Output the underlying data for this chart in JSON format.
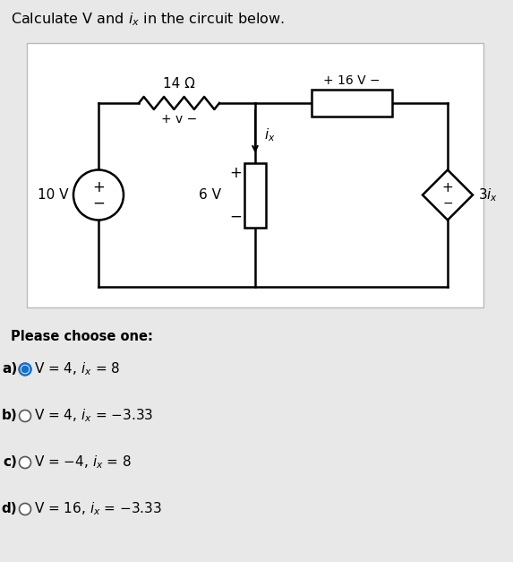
{
  "title": "Calculate V and $i_x$ in the circuit below.",
  "title_fontsize": 11.5,
  "bg_color": "#e8e8e8",
  "circuit_bg": "#ffffff",
  "options": [
    {
      "label": "a)",
      "text_parts": [
        "V = 4, ",
        "i",
        "x",
        " = 8"
      ],
      "selected": true
    },
    {
      "label": "b)",
      "text_parts": [
        "V = 4, ",
        "i",
        "x",
        " = −3.33"
      ],
      "selected": false
    },
    {
      "label": "c)",
      "text_parts": [
        "V = −4, ",
        "i",
        "x",
        " = 8"
      ],
      "selected": false
    },
    {
      "label": "d)",
      "text_parts": [
        "V = 16, ",
        "i",
        "x",
        " = −3.33"
      ],
      "selected": false
    }
  ],
  "please_choose": "Please choose one:",
  "radio_selected_color": "#1a6fc4",
  "radio_outline_color": "#1a6fc4",
  "lw": 1.8
}
